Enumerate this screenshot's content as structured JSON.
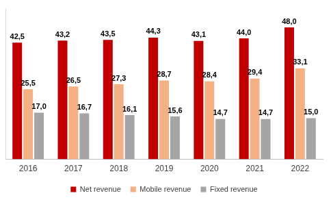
{
  "chart_data": {
    "type": "bar",
    "categories": [
      "2016",
      "2017",
      "2018",
      "2019",
      "2020",
      "2021",
      "2022"
    ],
    "series": [
      {
        "name": "Net revenue",
        "color": "#c00000",
        "values": [
          42.5,
          43.2,
          43.5,
          44.3,
          43.1,
          44.0,
          48.0
        ],
        "value_labels": [
          "42,5",
          "43,2",
          "43,5",
          "44,3",
          "43,1",
          "44,0",
          "48,0"
        ]
      },
      {
        "name": "Mobile revenue",
        "color": "#f4b183",
        "values": [
          25.5,
          26.5,
          27.3,
          28.7,
          28.4,
          29.4,
          33.1
        ],
        "value_labels": [
          "25,5",
          "26,5",
          "27,3",
          "28,7",
          "28,4",
          "29,4",
          "33,1"
        ]
      },
      {
        "name": "Fixed revenue",
        "color": "#a5a5a5",
        "values": [
          17.0,
          16.7,
          16.1,
          15.6,
          14.7,
          14.7,
          15.0
        ],
        "value_labels": [
          "17,0",
          "16,7",
          "16,1",
          "15,6",
          "14,7",
          "14,7",
          "15,0"
        ]
      }
    ],
    "ylim": [
      0,
      55
    ],
    "grid": false,
    "legend": "bottom",
    "data_labels": true,
    "tick_labels": "x"
  }
}
